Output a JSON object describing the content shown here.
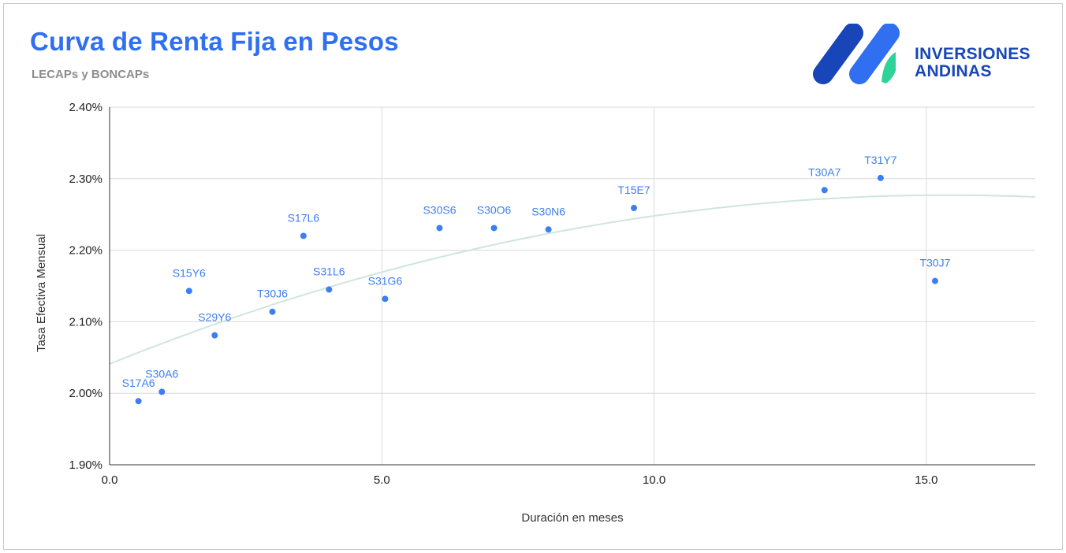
{
  "header": {
    "title": "Curva de Renta Fija en Pesos",
    "subtitle": "LECAPs y BONCAPs"
  },
  "logo": {
    "line1": "INVERSIONES",
    "line2": "ANDINAS",
    "icon": "inversiones-andinas-logo",
    "colors": {
      "dark": "#1846b8",
      "accent": "#2fd39a"
    }
  },
  "colors": {
    "title": "#2f6ff0",
    "points": "#3b7ff0",
    "trend": "#cfe6dd",
    "grid": "#d9d9d9"
  },
  "chart_data": {
    "type": "scatter",
    "title": "Curva de Renta Fija en Pesos",
    "subtitle": "LECAPs y BONCAPs",
    "xlabel": "Duración en meses",
    "ylabel": "Tasa Efectiva Mensual",
    "xlim": [
      0,
      17
    ],
    "ylim": [
      1.9,
      2.4
    ],
    "x_ticks": [
      {
        "value": 0,
        "label": "0.0"
      },
      {
        "value": 5,
        "label": "5.0"
      },
      {
        "value": 10,
        "label": "10.0"
      },
      {
        "value": 15,
        "label": "15.0"
      }
    ],
    "y_ticks": [
      {
        "value": 1.9,
        "label": "1.90%"
      },
      {
        "value": 2.0,
        "label": "2.00%"
      },
      {
        "value": 2.1,
        "label": "2.10%"
      },
      {
        "value": 2.2,
        "label": "2.20%"
      },
      {
        "value": 2.3,
        "label": "2.30%"
      },
      {
        "value": 2.4,
        "label": "2.40%"
      }
    ],
    "grid": true,
    "points": [
      {
        "label": "S17A6",
        "x": 0.53,
        "y": 1.989
      },
      {
        "label": "S30A6",
        "x": 0.96,
        "y": 2.002
      },
      {
        "label": "S15Y6",
        "x": 1.46,
        "y": 2.143
      },
      {
        "label": "S29Y6",
        "x": 1.93,
        "y": 2.081
      },
      {
        "label": "T30J6",
        "x": 2.99,
        "y": 2.114
      },
      {
        "label": "S17L6",
        "x": 3.56,
        "y": 2.22
      },
      {
        "label": "S31L6",
        "x": 4.03,
        "y": 2.145
      },
      {
        "label": "S31G6",
        "x": 5.06,
        "y": 2.132
      },
      {
        "label": "S30S6",
        "x": 6.06,
        "y": 2.231
      },
      {
        "label": "S30O6",
        "x": 7.06,
        "y": 2.231
      },
      {
        "label": "S30N6",
        "x": 8.06,
        "y": 2.229
      },
      {
        "label": "T15E7",
        "x": 9.63,
        "y": 2.259
      },
      {
        "label": "T30A7",
        "x": 13.13,
        "y": 2.284
      },
      {
        "label": "T31Y7",
        "x": 14.16,
        "y": 2.301
      },
      {
        "label": "T30J7",
        "x": 15.16,
        "y": 2.157
      }
    ],
    "trendline": {
      "type": "polynomial",
      "coefficients": [
        2.041,
        0.03063,
        -0.000994
      ]
    }
  }
}
